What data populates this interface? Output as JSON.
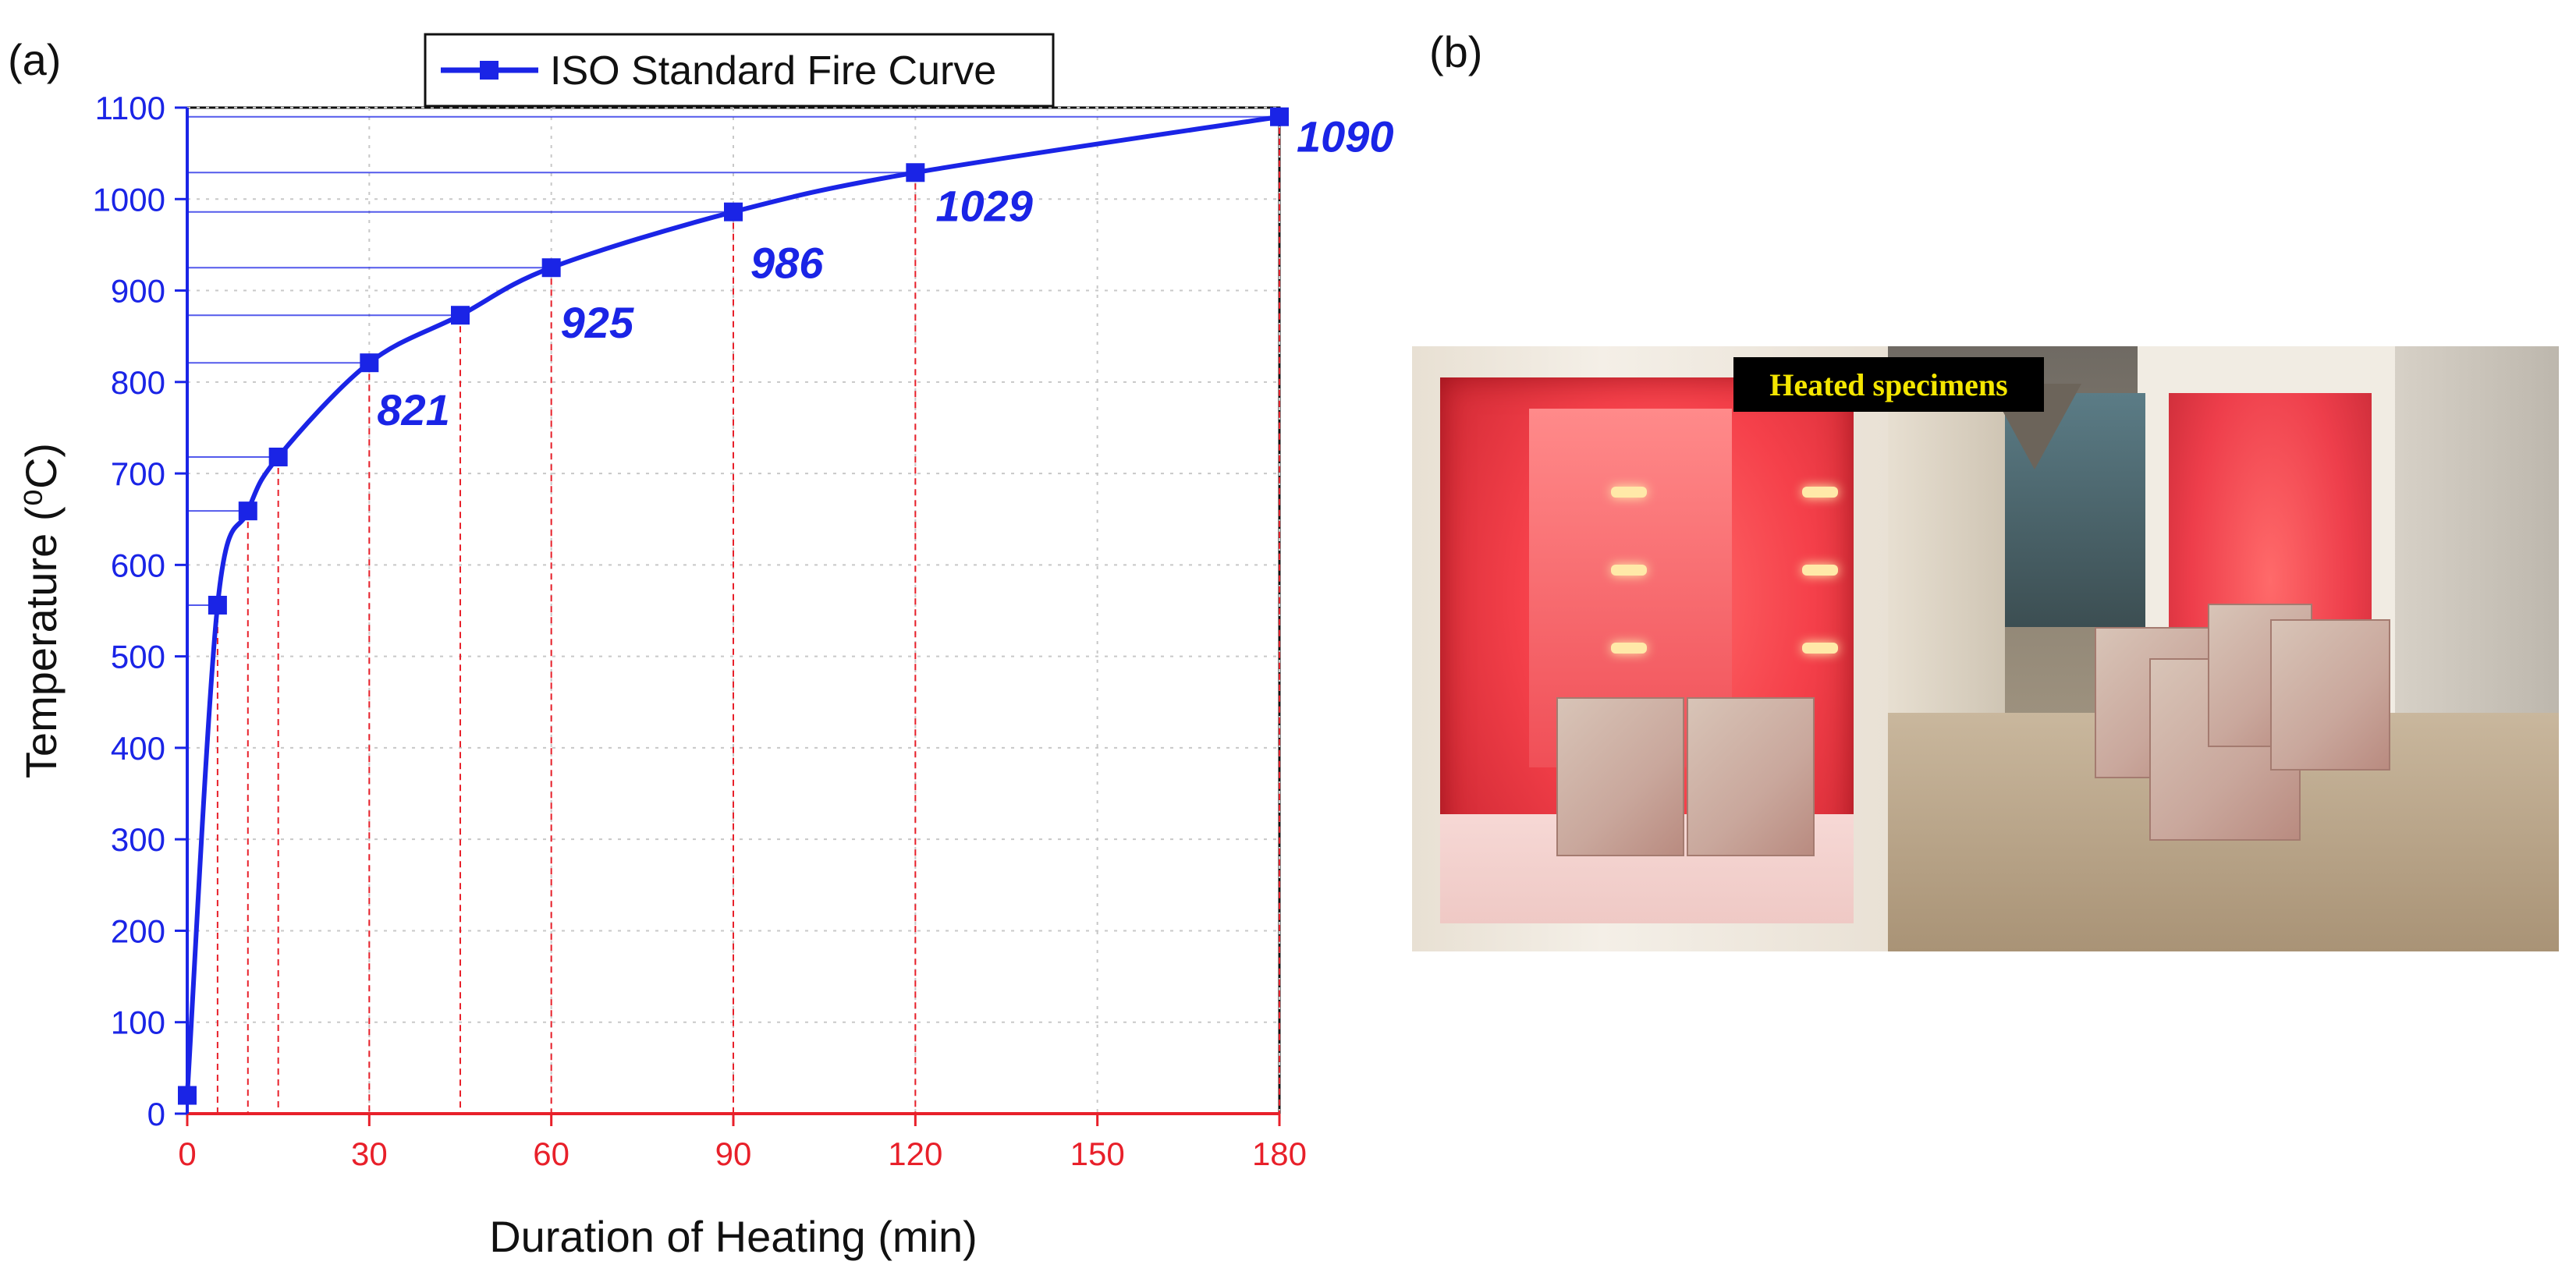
{
  "panel_a_label": "(a)",
  "panel_b_label": "(b)",
  "photo": {
    "tag_text": "Heated specimens"
  },
  "colors": {
    "curve": "#1a24e6",
    "x_ticks": "#e8202a",
    "y_ticks": "#1a24e6",
    "reference_lines": "#e8202a"
  },
  "chart_data": {
    "type": "line",
    "title": "",
    "xlabel": "Duration of Heating (min)",
    "ylabel": "Temperature (⁰C)",
    "xlim": [
      0,
      180
    ],
    "ylim": [
      0,
      1100
    ],
    "xticks": [
      "0",
      "30",
      "60",
      "90",
      "120",
      "150",
      "180"
    ],
    "yticks": [
      "0",
      "100",
      "200",
      "300",
      "400",
      "500",
      "600",
      "700",
      "800",
      "900",
      "1000",
      "1100"
    ],
    "grid": true,
    "legend": {
      "position": "top",
      "entries": [
        "ISO Standard Fire Curve"
      ]
    },
    "series": [
      {
        "name": "ISO Standard Fire Curve",
        "marker": "square",
        "x": [
          0,
          5,
          10,
          15,
          30,
          45,
          60,
          90,
          120,
          180
        ],
        "y": [
          20,
          556,
          659,
          718,
          821,
          873,
          925,
          986,
          1029,
          1090
        ]
      }
    ],
    "annotations": [
      {
        "x": 30,
        "y": 821,
        "text": "821"
      },
      {
        "x": 60,
        "y": 925,
        "text": "925"
      },
      {
        "x": 90,
        "y": 986,
        "text": "986"
      },
      {
        "x": 120,
        "y": 1029,
        "text": "1029"
      },
      {
        "x": 180,
        "y": 1090,
        "text": "1090"
      }
    ]
  }
}
